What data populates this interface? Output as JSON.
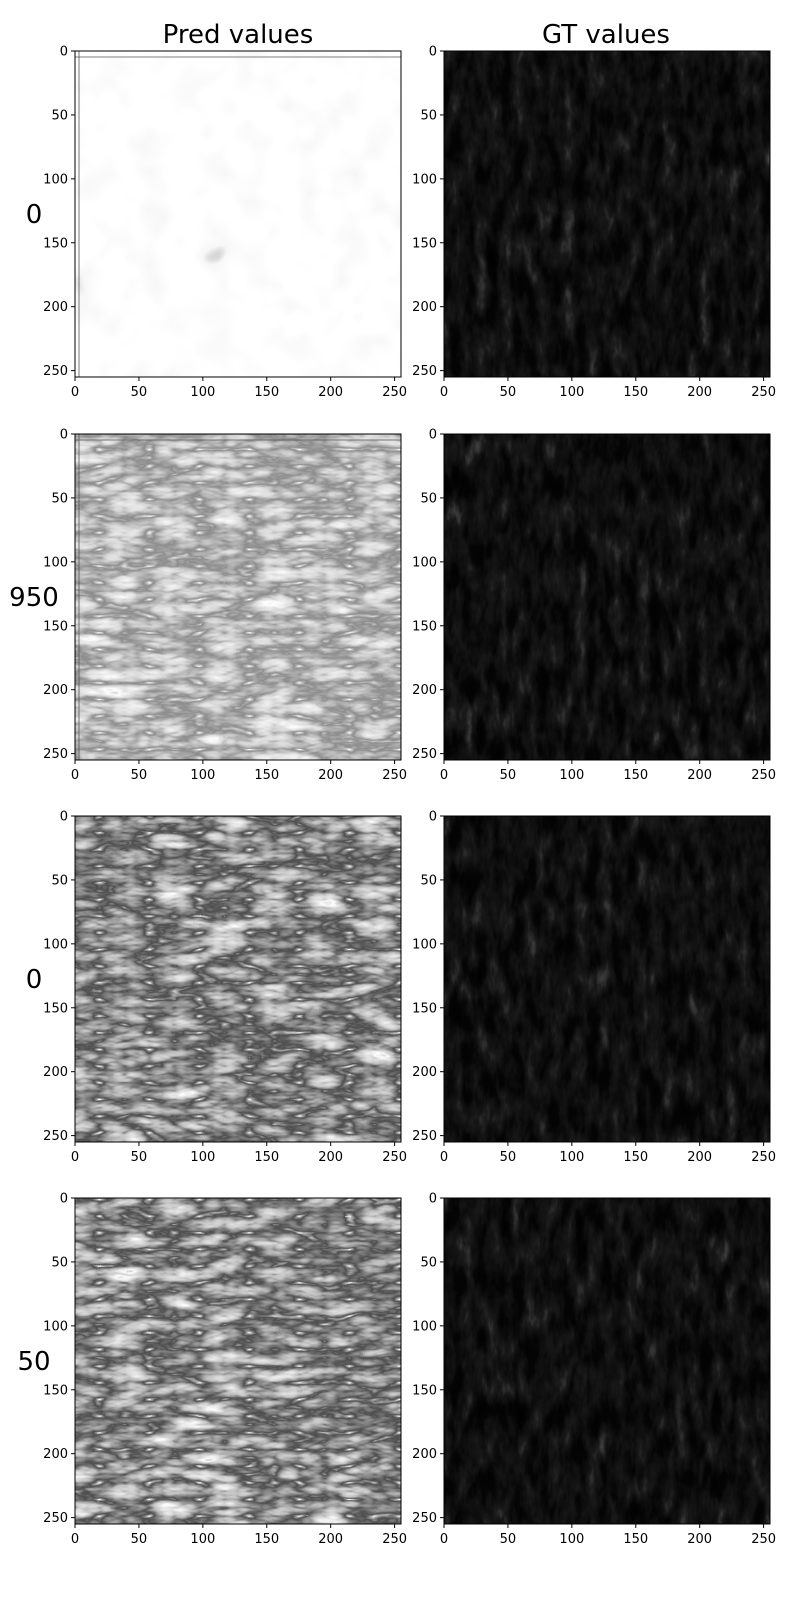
{
  "chart_data": {
    "type": "heatmap",
    "columns": [
      "Pred values",
      "GT values"
    ],
    "rows": [
      {
        "label": "0",
        "pred_style": "noise"
      },
      {
        "label": "950",
        "pred_style": "edges-light"
      },
      {
        "label": "0",
        "pred_style": "edges-strong"
      },
      {
        "label": "50",
        "pred_style": "edges-strong"
      }
    ],
    "xlim": [
      0,
      255
    ],
    "ylim": [
      255,
      0
    ],
    "x_ticks": [
      0,
      50,
      100,
      150,
      200,
      250
    ],
    "y_ticks": [
      0,
      50,
      100,
      150,
      200,
      250
    ],
    "colormap": "gray",
    "colors": {
      "frame": "#000000",
      "background": "#ffffff"
    }
  }
}
